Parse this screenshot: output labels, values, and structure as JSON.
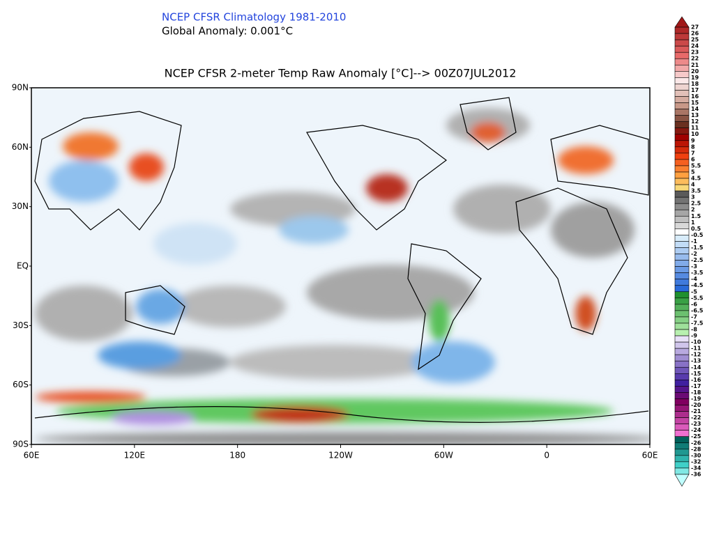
{
  "header": {
    "title": "NCEP CFSR Climatology 1981-2010",
    "subtitle": "Global Anomaly: 0.001°C"
  },
  "map": {
    "title": "NCEP CFSR 2-meter Temp Raw Anomaly [°C]--> 00Z07JUL2012",
    "lon_labels": [
      "60E",
      "120E",
      "180",
      "120W",
      "60W",
      "0",
      "60E"
    ],
    "lat_labels": [
      "90N",
      "60N",
      "30N",
      "EQ",
      "30S",
      "60S",
      "90S"
    ]
  },
  "colorbar": {
    "labels": [
      "27",
      "26",
      "25",
      "24",
      "23",
      "22",
      "21",
      "20",
      "19",
      "18",
      "17",
      "16",
      "15",
      "14",
      "13",
      "12",
      "11",
      "10",
      "9",
      "8",
      "7",
      "6",
      "5.5",
      "5",
      "4.5",
      "4",
      "3.5",
      "3",
      "2.5",
      "2",
      "1.5",
      "1",
      "0.5",
      "-0.5",
      "-1",
      "-1.5",
      "-2",
      "-2.5",
      "-3",
      "-3.5",
      "-4",
      "-4.5",
      "-5",
      "-5.5",
      "-6",
      "-6.5",
      "-7",
      "-7.5",
      "-8",
      "-9",
      "-10",
      "-11",
      "-12",
      "-13",
      "-14",
      "-15",
      "-16",
      "-17",
      "-18",
      "-19",
      "-20",
      "-21",
      "-22",
      "-23",
      "-24",
      "-25",
      "-26",
      "-28",
      "-30",
      "-32",
      "-34",
      "-36"
    ]
  }
}
